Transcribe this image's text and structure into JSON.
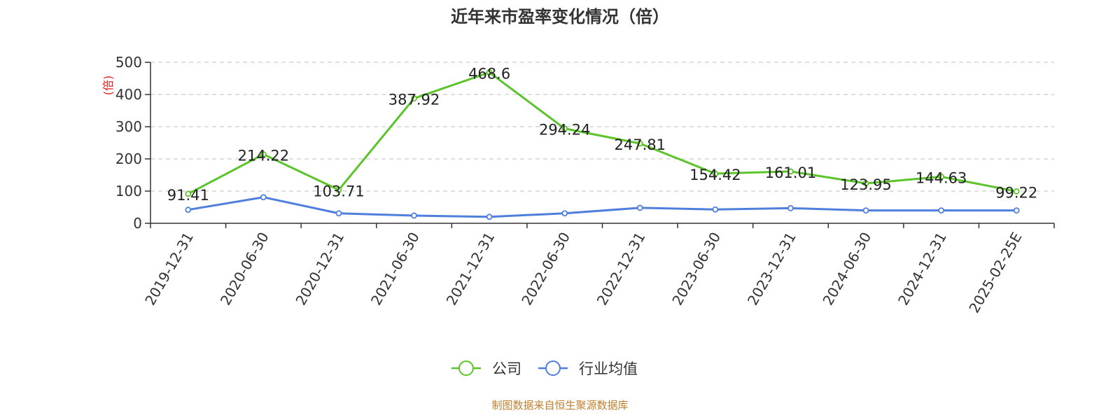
{
  "chart_data": {
    "type": "line",
    "title": "近年来市盈率变化情况（倍）",
    "ylabel": "(倍)",
    "ylim": [
      0,
      500
    ],
    "yticks": [
      0,
      100,
      200,
      300,
      400,
      500
    ],
    "categories": [
      "2019-12-31",
      "2020-06-30",
      "2020-12-31",
      "2021-06-30",
      "2021-12-31",
      "2022-06-30",
      "2022-12-31",
      "2023-06-30",
      "2023-12-31",
      "2024-06-30",
      "2024-12-31",
      "2025-02-25E"
    ],
    "series": [
      {
        "name": "公司",
        "color": "#5cc42b",
        "values": [
          91.41,
          214.22,
          103.71,
          387.92,
          468.6,
          294.24,
          247.81,
          154.42,
          161.01,
          123.95,
          144.63,
          99.22
        ],
        "labels": [
          "91.41",
          "214.22",
          "103.71",
          "387.92",
          "468.6",
          "294.24",
          "247.81",
          "154.42",
          "161.01",
          "123.95",
          "144.63",
          "99.22"
        ]
      },
      {
        "name": "行业均值",
        "color": "#4f7fdc",
        "values": [
          42,
          81,
          31,
          24,
          20,
          31,
          48,
          43,
          47,
          40,
          40,
          40
        ]
      }
    ],
    "grid": true,
    "legend": "bottom-center"
  },
  "source_text": "制图数据来自恒生聚源数据库",
  "colors": {
    "ylabel": "#e02020",
    "source": "#c08030",
    "grid": "#cccccc",
    "axis": "#333333"
  }
}
